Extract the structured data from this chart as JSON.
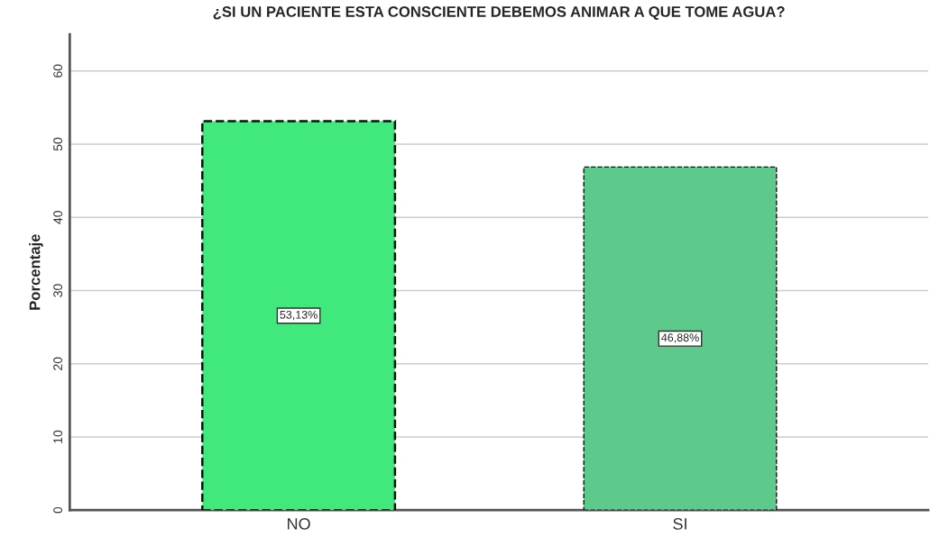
{
  "chart_data": {
    "type": "bar",
    "title": "¿SI UN PACIENTE ESTA CONSCIENTE DEBEMOS ANIMAR A QUE TOME AGUA?",
    "ylabel": "Porcentaje",
    "categories": [
      "NO",
      "SI"
    ],
    "values": [
      53.13,
      46.88
    ],
    "colors": [
      "#41e87c",
      "#5dc98a"
    ],
    "value_labels": [
      "53,13%",
      "46,88%"
    ],
    "ylim": [
      0,
      65
    ],
    "yticks": [
      0,
      10,
      20,
      30,
      40,
      50,
      60
    ],
    "grid": "y",
    "line_style": "dashed"
  }
}
